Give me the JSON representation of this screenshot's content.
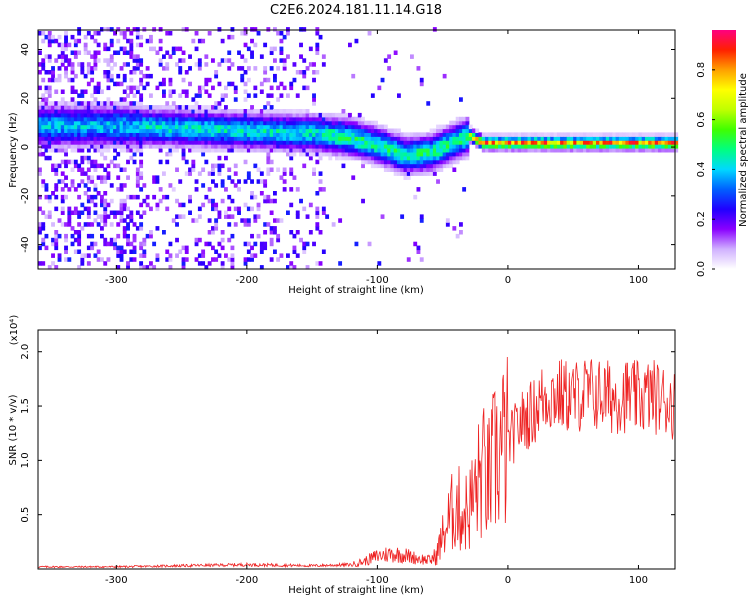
{
  "title": "C2E6.2024.181.11.14.G18",
  "chart_data": [
    {
      "type": "heatmap",
      "xlabel": "Height of straight line (km)",
      "ylabel": "Frequency (Hz)",
      "xlim": [
        -360,
        128
      ],
      "ylim": [
        -50,
        48
      ],
      "xticks": [
        -300,
        -200,
        -100,
        0,
        100
      ],
      "yticks": [
        -40,
        -20,
        0,
        20,
        40
      ],
      "colorbar": {
        "label": "Normalized spectral amplitude",
        "range": [
          0.0,
          0.96
        ],
        "ticks": [
          "0.0",
          "0.2",
          "0.4",
          "0.6",
          "0.8"
        ],
        "tick_values": [
          0.0,
          0.2,
          0.4,
          0.6,
          0.8
        ],
        "colors": [
          "#ffffff",
          "#d0b0ff",
          "#8a00ff",
          "#2000ff",
          "#0060ff",
          "#00d8ff",
          "#00ff80",
          "#40ff00",
          "#c0ff00",
          "#ffff00",
          "#ffa000",
          "#ff2000",
          "#ff0080"
        ]
      },
      "ridge_center": {
        "x": [
          -360,
          -300,
          -250,
          -200,
          -150,
          -120,
          -100,
          -80,
          -60,
          -40,
          -30,
          -20,
          0,
          50,
          100,
          128
        ],
        "y": [
          8,
          8,
          7,
          6,
          5,
          3,
          0,
          -4,
          -3,
          2,
          4,
          1,
          1,
          1,
          1,
          1
        ]
      }
    },
    {
      "type": "line",
      "xlabel": "Height of straight line (km)",
      "ylabel": "SNR (10 * v/v)",
      "multiplier": "(x10⁴)",
      "xlim": [
        -360,
        128
      ],
      "ylim": [
        0.0,
        2.2
      ],
      "xticks": [
        -300,
        -200,
        -100,
        0,
        100
      ],
      "yticks": [
        "0.5",
        "1.0",
        "1.5",
        "2.0"
      ],
      "ytick_values": [
        0.5,
        1.0,
        1.5,
        2.0
      ],
      "series": [
        {
          "color": "#ee2222",
          "x": [
            -360,
            -300,
            -250,
            -200,
            -150,
            -120,
            -110,
            -100,
            -90,
            -80,
            -70,
            -60,
            -55,
            -50,
            -45,
            -40,
            -35,
            -30,
            -25,
            -20,
            -15,
            -10,
            -5,
            0,
            5,
            10,
            15,
            20,
            25,
            30,
            40,
            50,
            60,
            70,
            80,
            90,
            100,
            110,
            120,
            128
          ],
          "y": [
            0.02,
            0.02,
            0.03,
            0.04,
            0.03,
            0.04,
            0.07,
            0.12,
            0.14,
            0.13,
            0.1,
            0.08,
            0.12,
            0.3,
            0.45,
            0.6,
            0.5,
            0.55,
            0.7,
            0.9,
            0.8,
            1.0,
            1.1,
            1.15,
            1.25,
            1.35,
            1.4,
            1.45,
            1.55,
            1.6,
            1.6,
            1.58,
            1.62,
            1.6,
            1.58,
            1.6,
            1.57,
            1.6,
            1.55,
            1.52
          ]
        }
      ]
    }
  ]
}
